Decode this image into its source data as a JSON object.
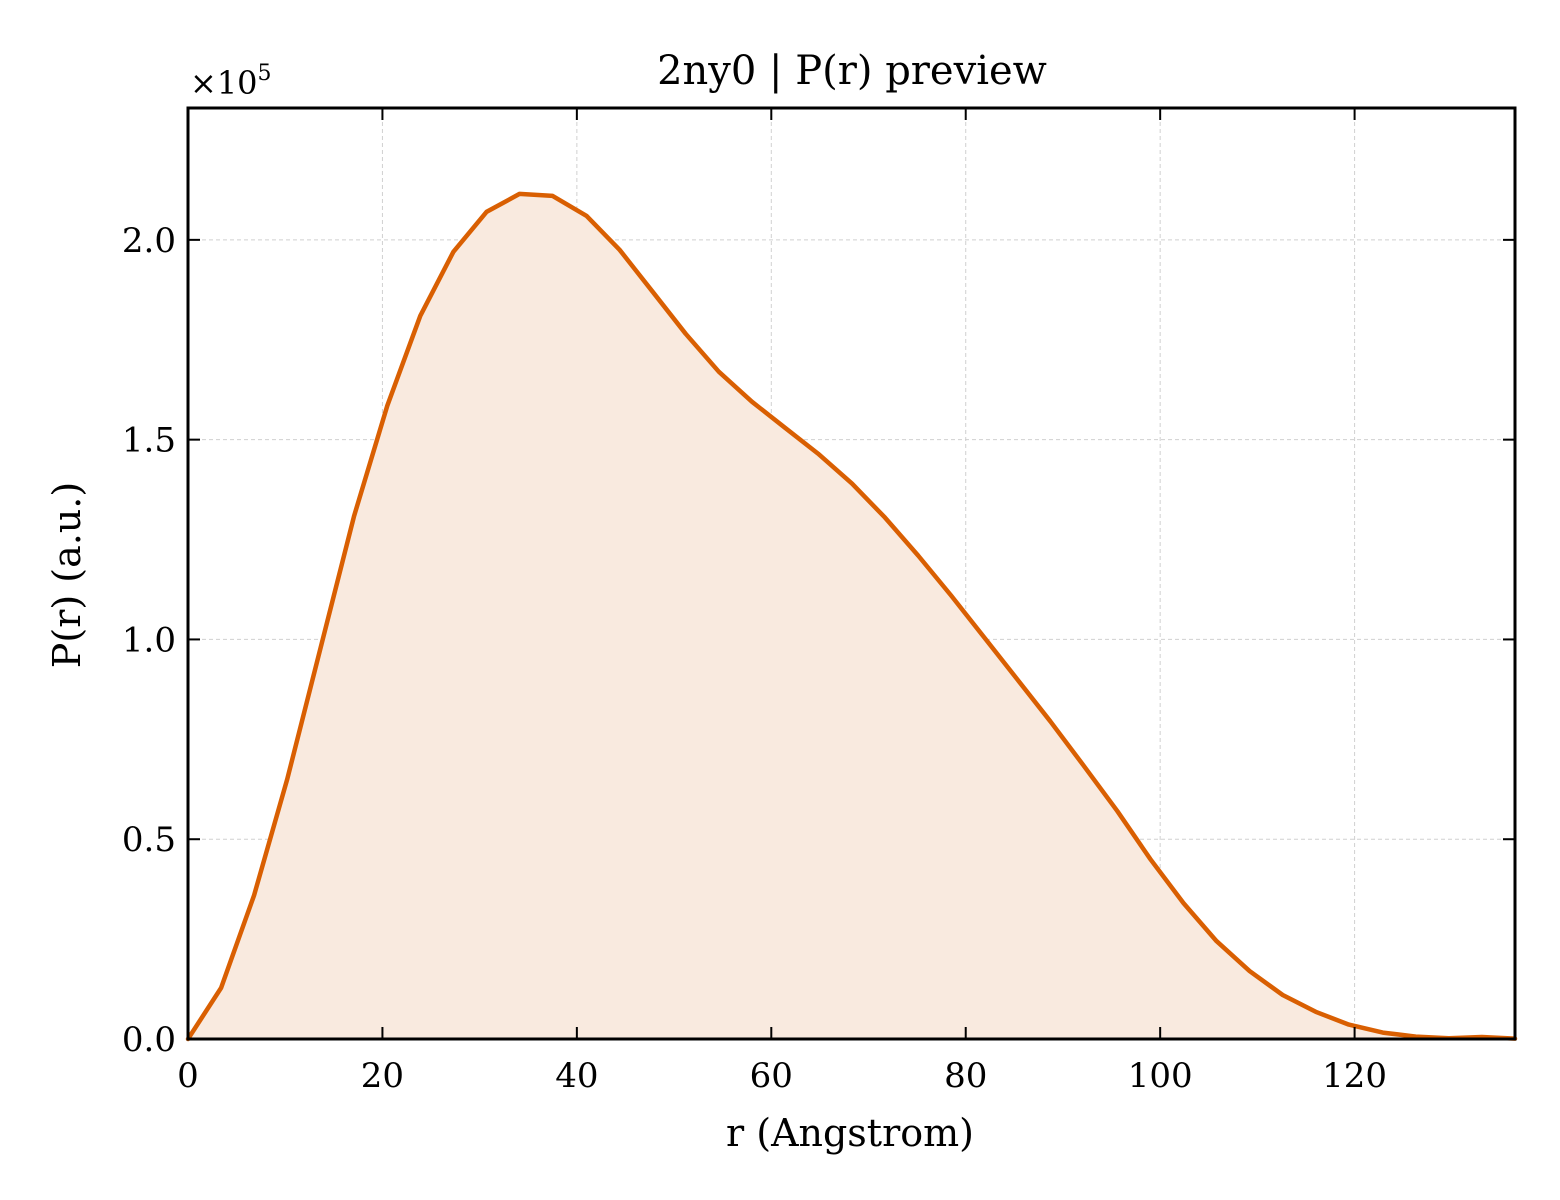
{
  "colors": {
    "line": "#d95f02",
    "fill": "#f9eadf",
    "grid": "#d0d0d0",
    "axis": "#000000",
    "background": "#ffffff"
  },
  "chart_data": {
    "type": "area",
    "title": "2ny0 | P(r) preview",
    "xlabel": "r (Angstrom)",
    "ylabel": "P(r) (a.u.)",
    "y_multiplier_label": "×10",
    "y_multiplier_exponent": "5",
    "xlim": [
      0,
      136.5
    ],
    "ylim": [
      0,
      2.33
    ],
    "x_ticks": [
      0,
      20,
      40,
      60,
      80,
      100,
      120
    ],
    "x_tick_labels": [
      "0",
      "20",
      "40",
      "60",
      "80",
      "100",
      "120"
    ],
    "y_ticks": [
      0,
      0.5,
      1.0,
      1.5,
      2.0
    ],
    "y_tick_labels": [
      "0.0",
      "0.5",
      "1.0",
      "1.5",
      "2.0"
    ],
    "grid": true,
    "series": [
      {
        "x": [
          0,
          3.4,
          6.8,
          10.2,
          13.7,
          17.1,
          20.5,
          23.9,
          27.3,
          30.7,
          34.1,
          37.5,
          41.0,
          44.4,
          47.8,
          51.2,
          54.6,
          58.0,
          61.4,
          64.8,
          68.3,
          71.7,
          75.1,
          78.5,
          81.9,
          85.3,
          88.7,
          92.1,
          95.6,
          99.0,
          102.4,
          105.8,
          109.2,
          112.6,
          116.0,
          119.4,
          122.9,
          126.3,
          129.7,
          133.1,
          136.5
        ],
        "y": [
          0.0,
          0.128,
          0.36,
          0.65,
          0.985,
          1.31,
          1.585,
          1.81,
          1.97,
          2.07,
          2.115,
          2.11,
          2.06,
          1.975,
          1.87,
          1.765,
          1.67,
          1.595,
          1.53,
          1.465,
          1.39,
          1.305,
          1.21,
          1.11,
          1.005,
          0.9,
          0.795,
          0.685,
          0.57,
          0.45,
          0.34,
          0.245,
          0.17,
          0.11,
          0.068,
          0.036,
          0.016,
          0.006,
          0.002,
          0.005,
          0.001
        ]
      }
    ]
  }
}
